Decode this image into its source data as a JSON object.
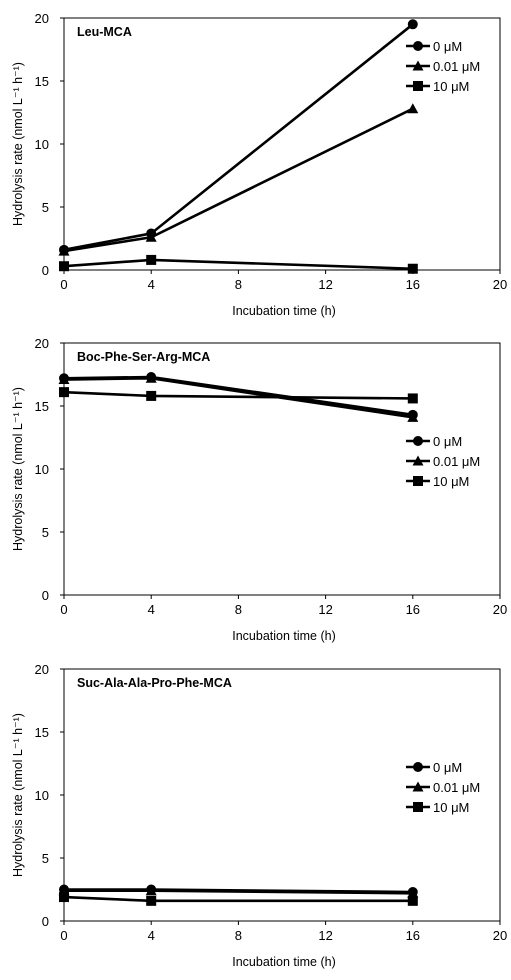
{
  "chart_data": [
    {
      "type": "line",
      "title": "Leu-MCA",
      "xlabel": "Incubation time (h)",
      "ylabel": "Hydrolysis rate (nmol L⁻¹ h⁻¹)",
      "xlim": [
        0,
        20
      ],
      "ylim": [
        0,
        20
      ],
      "xticks": [
        "0",
        "4",
        "8",
        "12",
        "16",
        "20"
      ],
      "yticks": [
        "0",
        "5",
        "10",
        "15",
        "20"
      ],
      "legend_position": "right",
      "x": [
        0,
        4,
        16
      ],
      "series": [
        {
          "name": "0 μM",
          "marker": "circle",
          "values": [
            1.6,
            2.9,
            19.5
          ]
        },
        {
          "name": "0.01 μM",
          "marker": "triangle",
          "values": [
            1.5,
            2.6,
            12.8
          ]
        },
        {
          "name": "10 μM",
          "marker": "square",
          "values": [
            0.3,
            0.8,
            0.1
          ]
        }
      ]
    },
    {
      "type": "line",
      "title": "Boc-Phe-Ser-Arg-MCA",
      "xlabel": "Incubation time (h)",
      "ylabel": "Hydrolysis rate (nmol L⁻¹ h⁻¹)",
      "xlim": [
        0,
        20
      ],
      "ylim": [
        0,
        20
      ],
      "xticks": [
        "0",
        "4",
        "8",
        "12",
        "16",
        "20"
      ],
      "yticks": [
        "0",
        "5",
        "10",
        "15",
        "20"
      ],
      "legend_position": "right",
      "x": [
        0,
        4,
        16
      ],
      "series": [
        {
          "name": "0 μM",
          "marker": "circle",
          "values": [
            17.2,
            17.3,
            14.3
          ]
        },
        {
          "name": "0.01 μM",
          "marker": "triangle",
          "values": [
            17.1,
            17.2,
            14.1
          ]
        },
        {
          "name": "10 μM",
          "marker": "square",
          "values": [
            16.1,
            15.8,
            15.6
          ]
        }
      ]
    },
    {
      "type": "line",
      "title": "Suc-Ala-Ala-Pro-Phe-MCA",
      "xlabel": "Incubation time (h)",
      "ylabel": "Hydrolysis rate (nmol L⁻¹ h⁻¹)",
      "xlim": [
        0,
        20
      ],
      "ylim": [
        0,
        20
      ],
      "xticks": [
        "0",
        "4",
        "8",
        "12",
        "16",
        "20"
      ],
      "yticks": [
        "0",
        "5",
        "10",
        "15",
        "20"
      ],
      "legend_position": "right",
      "x": [
        0,
        4,
        16
      ],
      "series": [
        {
          "name": "0 μM",
          "marker": "circle",
          "values": [
            2.5,
            2.5,
            2.3
          ]
        },
        {
          "name": "0.01 μM",
          "marker": "triangle",
          "values": [
            2.4,
            2.4,
            2.2
          ]
        },
        {
          "name": "10 μM",
          "marker": "square",
          "values": [
            1.9,
            1.6,
            1.6
          ]
        }
      ]
    }
  ]
}
